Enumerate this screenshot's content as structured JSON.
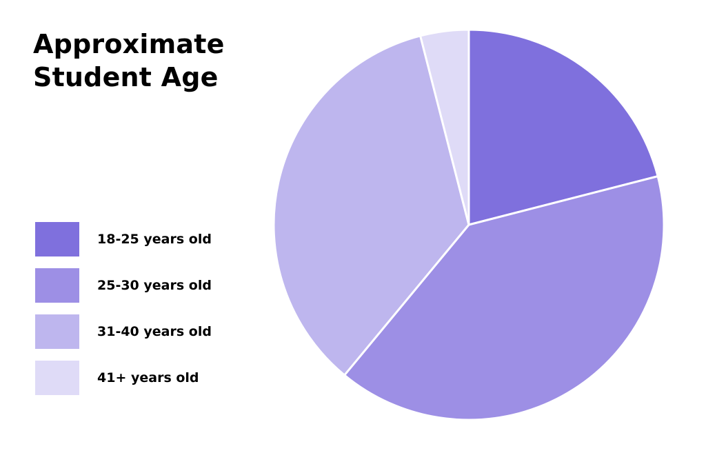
{
  "chart_data": {
    "type": "pie",
    "title_lines": [
      "Approximate",
      "Student Age"
    ],
    "categories": [
      "18-25 years old",
      "25-30 years old",
      "31-40 years old",
      "41+ years old"
    ],
    "values": [
      21,
      40,
      35,
      4
    ],
    "colors": [
      "#7f70dd",
      "#9d8fe5",
      "#beb6ee",
      "#dfdbf7"
    ],
    "legend_position": "left"
  }
}
